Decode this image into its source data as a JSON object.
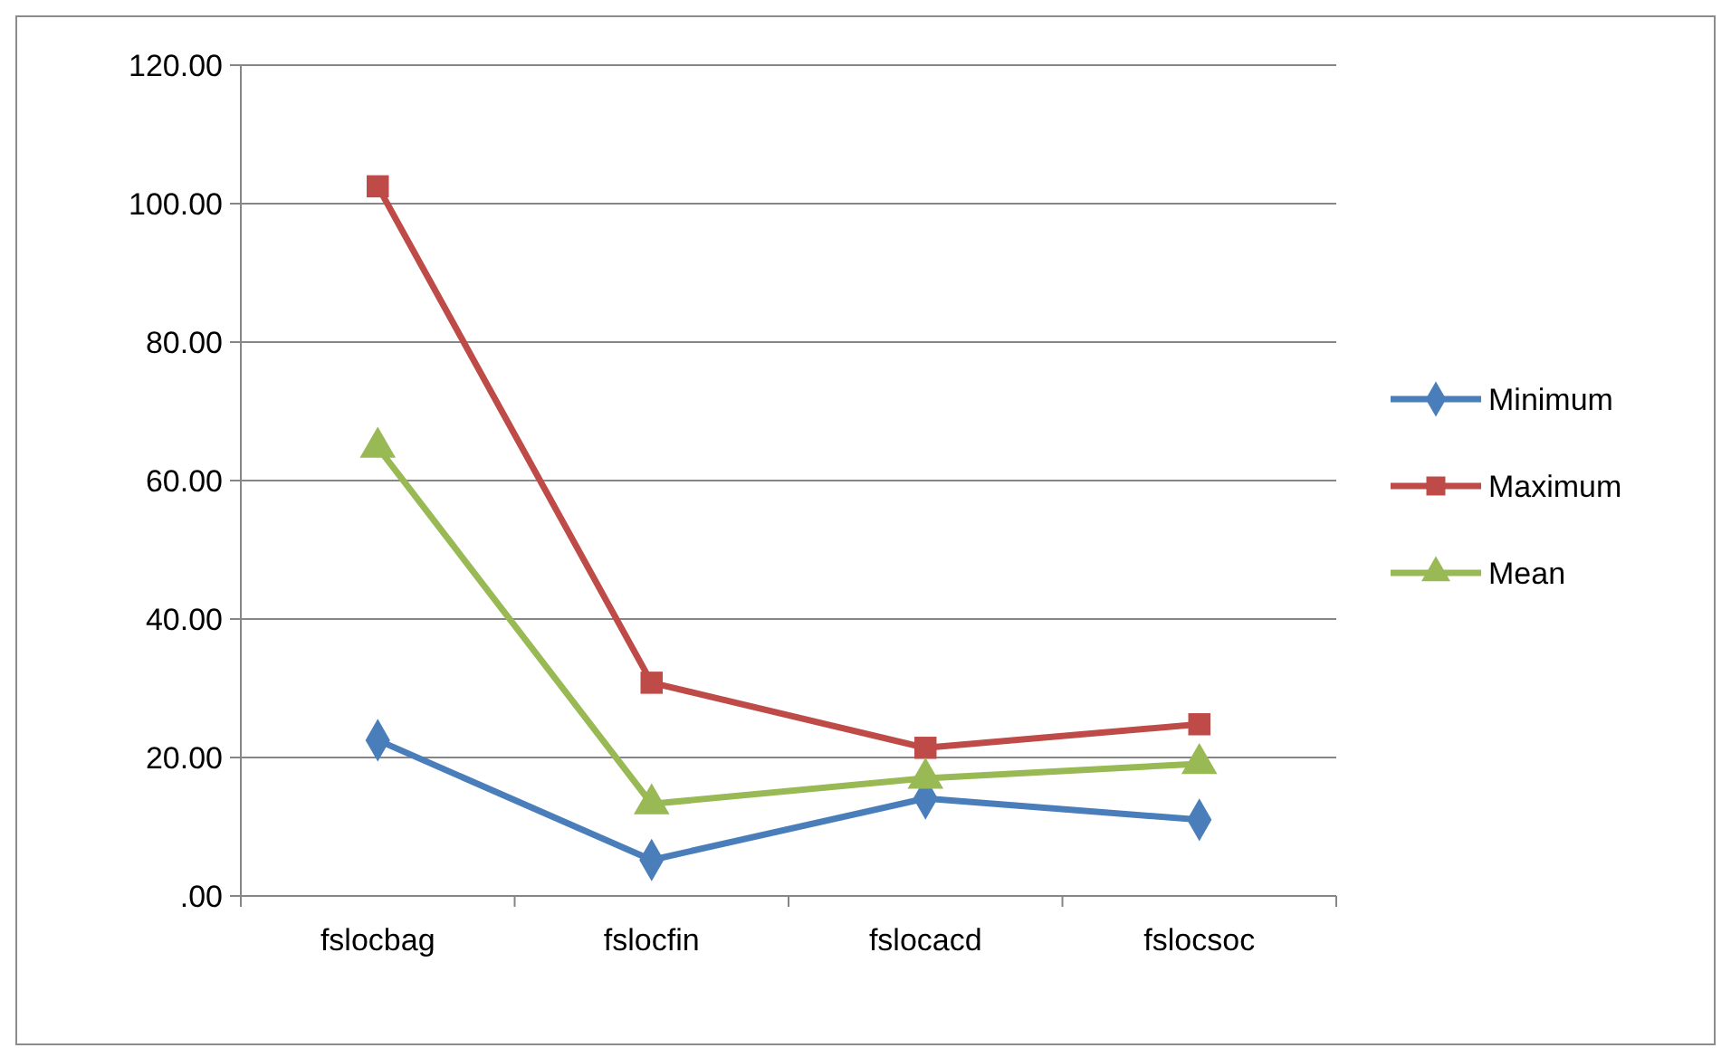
{
  "chart_data": {
    "type": "line",
    "categories": [
      "fslocbag",
      "fslocfin",
      "fslocacd",
      "fslocsoc"
    ],
    "series": [
      {
        "name": "Minimum",
        "color": "#4a7ebb",
        "marker": "diamond",
        "values": [
          22.5,
          5.2,
          14.1,
          11.0
        ]
      },
      {
        "name": "Maximum",
        "color": "#be4b48",
        "marker": "square",
        "values": [
          102.5,
          30.8,
          21.4,
          24.8
        ]
      },
      {
        "name": "Mean",
        "color": "#98b954",
        "marker": "triangle",
        "values": [
          64.8,
          13.3,
          17.0,
          19.1
        ]
      }
    ],
    "ylim": [
      0,
      120
    ],
    "yticks": [
      {
        "value": 0,
        "label": ".00"
      },
      {
        "value": 20,
        "label": "20.00"
      },
      {
        "value": 40,
        "label": "40.00"
      },
      {
        "value": 60,
        "label": "60.00"
      },
      {
        "value": 80,
        "label": "80.00"
      },
      {
        "value": 100,
        "label": "100.00"
      },
      {
        "value": 120,
        "label": "120.00"
      }
    ],
    "grid": "y",
    "legend": "right",
    "line_style": "solid"
  }
}
